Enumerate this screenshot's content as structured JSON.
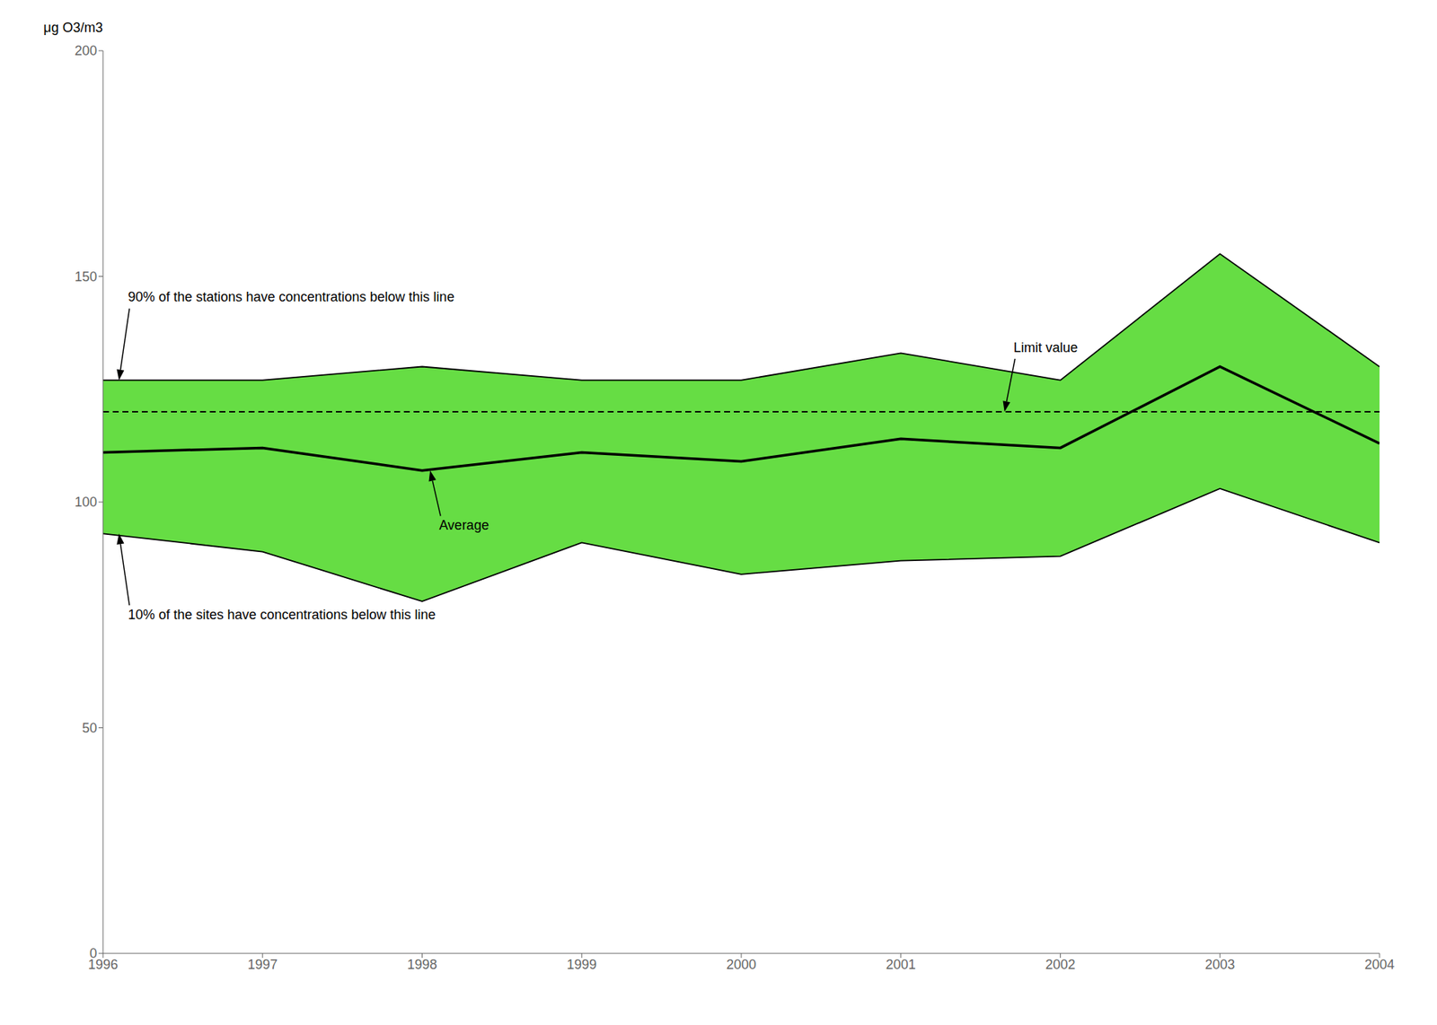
{
  "chart_data": {
    "type": "line",
    "ylabel": "μg O3/m3",
    "x": [
      1996,
      1997,
      1998,
      1999,
      2000,
      2001,
      2002,
      2003,
      2004
    ],
    "series": [
      {
        "type": "area",
        "color": "#66dd44",
        "values": [
          127,
          127,
          130,
          127,
          127,
          133,
          127,
          155,
          130
        ]
      },
      {
        "type": "line",
        "color": "#000000",
        "line_style": "solid",
        "values": [
          93,
          89,
          78,
          91,
          84,
          87,
          88,
          103,
          91
        ]
      },
      {
        "type": "line",
        "color": "#000000",
        "line_style": "thick",
        "values": [
          111,
          112,
          107,
          111,
          109,
          114,
          112,
          130,
          113
        ]
      }
    ],
    "limit": {
      "value": 120,
      "color": "#000000",
      "line_style": "dashed"
    },
    "annotations": [
      {
        "text": "90% of the stations have concentrations below this line",
        "x": 1996.1,
        "y": 127
      },
      {
        "text": "10% of the sites have concentrations below this line",
        "x": 1996.1,
        "y": 93
      },
      {
        "text": "Average",
        "x": 1998.05,
        "y": 107
      },
      {
        "text": "Limit value",
        "x": 2001.65,
        "y": 120
      }
    ],
    "xlim": [
      1996,
      2004
    ],
    "xticks": [
      1996,
      1997,
      1998,
      1999,
      2000,
      2001,
      2002,
      2003,
      2004
    ],
    "ylim": [
      0,
      200
    ],
    "yticks": [
      0,
      50,
      100,
      150,
      200
    ],
    "grid": false
  }
}
